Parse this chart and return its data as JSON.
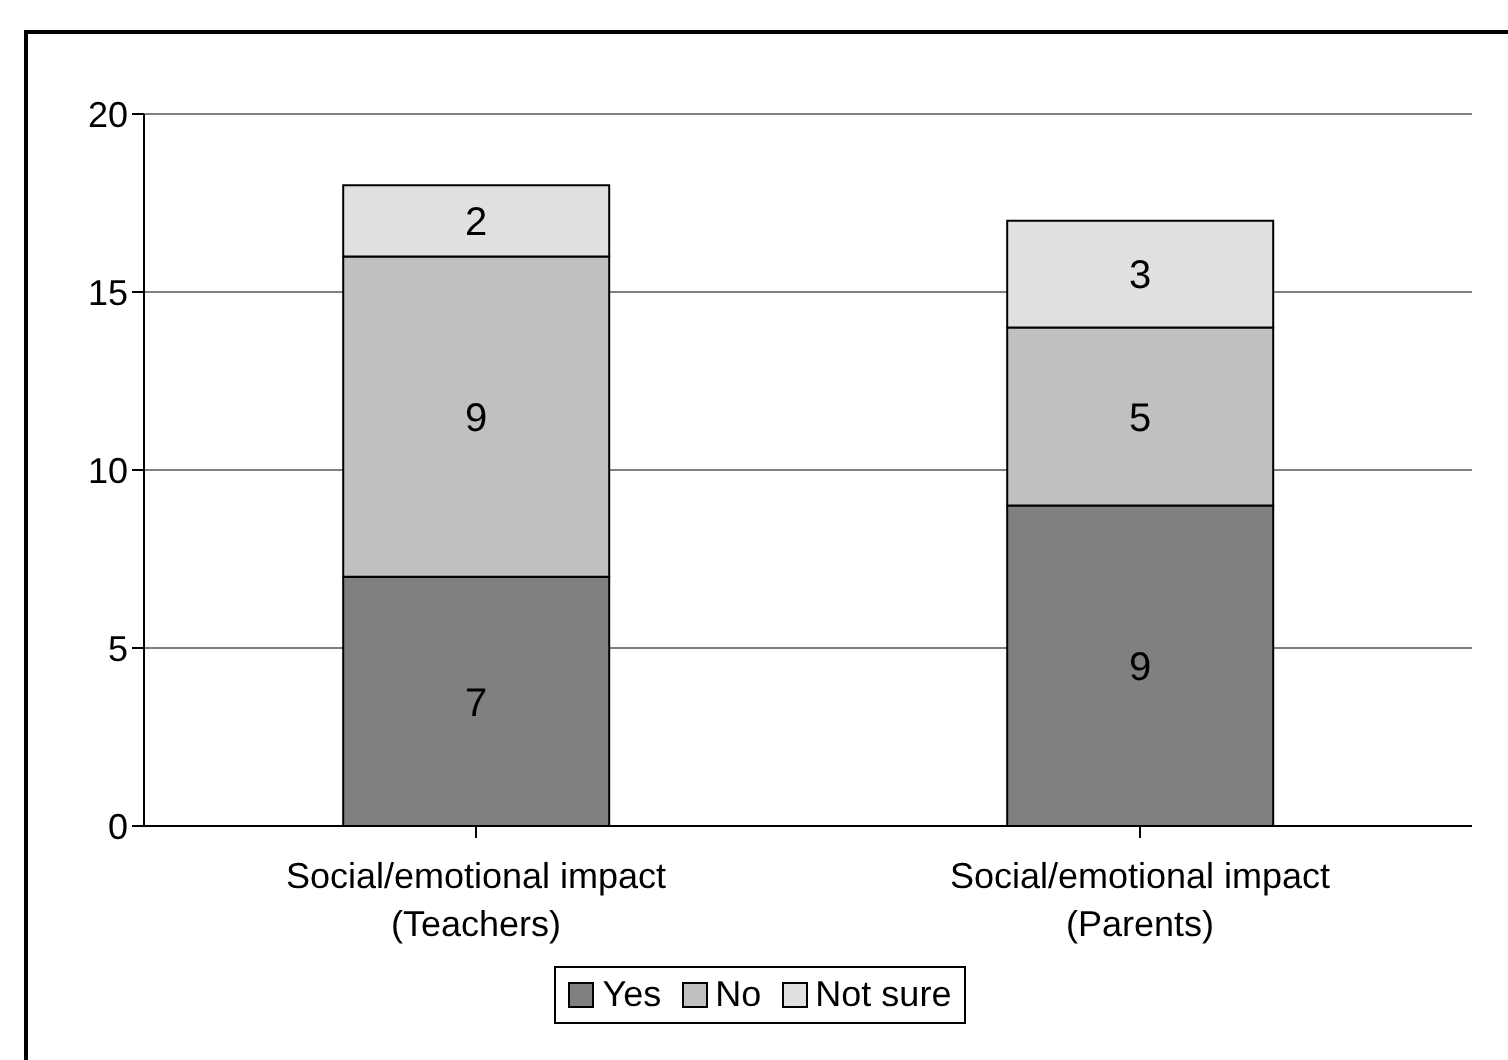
{
  "chart_data": {
    "type": "bar",
    "stacked": true,
    "categories": [
      "Social/emotional impact (Teachers)",
      "Social/emotional impact (Parents)"
    ],
    "series": [
      {
        "name": "Yes",
        "color": "#808080",
        "values": [
          7,
          9
        ]
      },
      {
        "name": "No",
        "color": "#c0c0c0",
        "values": [
          9,
          5
        ]
      },
      {
        "name": "Not sure",
        "color": "#e0e0e0",
        "values": [
          2,
          3
        ]
      }
    ],
    "ylim": [
      0,
      20
    ],
    "yticks": [
      0,
      5,
      10,
      15,
      20
    ],
    "grid": "y",
    "legend": "bottom",
    "data_labels": true
  }
}
